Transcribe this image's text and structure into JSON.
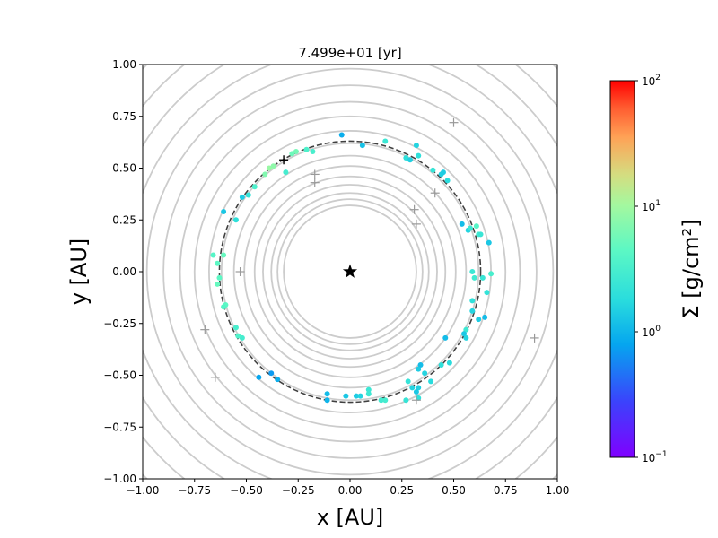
{
  "chart_data": {
    "type": "scatter",
    "title": "7.499e+01 [yr]",
    "xlabel": "x [AU]",
    "ylabel": "y [AU]",
    "xlim": [
      -1.0,
      1.0
    ],
    "ylim": [
      -1.0,
      1.0
    ],
    "x_ticks": [
      "−1.00",
      "−0.75",
      "−0.50",
      "−0.25",
      "0.00",
      "0.25",
      "0.50",
      "0.75",
      "1.00"
    ],
    "y_ticks": [
      "−1.00",
      "−0.75",
      "−0.50",
      "−0.25",
      "0.00",
      "0.25",
      "0.50",
      "0.75",
      "1.00"
    ],
    "grid": false,
    "star": {
      "x": 0.0,
      "y": 0.0,
      "marker": "star",
      "color": "#000000"
    },
    "reference_circle": {
      "radius": 0.63,
      "style": "dashed",
      "color": "#404040"
    },
    "background_rings": {
      "color": "#cccccc",
      "radii": [
        0.32,
        0.35,
        0.38,
        0.42,
        0.46,
        0.51,
        0.56,
        0.62,
        0.68,
        0.75,
        0.82,
        0.9,
        0.98,
        1.07,
        1.17,
        1.28,
        1.4
      ]
    },
    "colorbar": {
      "label": "Σ [g/cm²]",
      "scale": "log",
      "range": [
        0.1,
        100
      ],
      "tick_labels": [
        {
          "value": 0.1,
          "base": "10",
          "exp": "−1"
        },
        {
          "value": 1,
          "base": "10",
          "exp": "0"
        },
        {
          "value": 10,
          "base": "10",
          "exp": "1"
        },
        {
          "value": 100,
          "base": "10",
          "exp": "2"
        }
      ],
      "colormap": "rainbow"
    },
    "gray_markers": [
      {
        "x": 0.5,
        "y": 0.72
      },
      {
        "x": -0.17,
        "y": 0.47
      },
      {
        "x": -0.17,
        "y": 0.43
      },
      {
        "x": 0.41,
        "y": 0.38
      },
      {
        "x": 0.31,
        "y": 0.3
      },
      {
        "x": 0.32,
        "y": 0.23
      },
      {
        "x": -0.53,
        "y": 0.0
      },
      {
        "x": -0.7,
        "y": -0.28
      },
      {
        "x": -0.65,
        "y": -0.51
      },
      {
        "x": 0.89,
        "y": -0.32
      },
      {
        "x": 0.32,
        "y": -0.62
      }
    ],
    "black_marker": {
      "x": -0.32,
      "y": 0.54
    },
    "points": [
      {
        "x": -0.04,
        "y": 0.66,
        "s": 0.9
      },
      {
        "x": 0.06,
        "y": 0.61,
        "s": 1.2
      },
      {
        "x": 0.17,
        "y": 0.63,
        "s": 2.5
      },
      {
        "x": 0.32,
        "y": 0.61,
        "s": 1.6
      },
      {
        "x": 0.27,
        "y": 0.55,
        "s": 2.0
      },
      {
        "x": 0.29,
        "y": 0.54,
        "s": 1.5
      },
      {
        "x": 0.33,
        "y": 0.56,
        "s": 2.0
      },
      {
        "x": 0.4,
        "y": 0.49,
        "s": 2.3
      },
      {
        "x": 0.44,
        "y": 0.47,
        "s": 1.5
      },
      {
        "x": 0.45,
        "y": 0.48,
        "s": 1.4
      },
      {
        "x": 0.47,
        "y": 0.44,
        "s": 1.8
      },
      {
        "x": 0.54,
        "y": 0.23,
        "s": 1.1
      },
      {
        "x": 0.57,
        "y": 0.2,
        "s": 1.6
      },
      {
        "x": 0.58,
        "y": 0.21,
        "s": 2.6
      },
      {
        "x": 0.61,
        "y": 0.22,
        "s": 4.0
      },
      {
        "x": 0.62,
        "y": 0.18,
        "s": 3.0
      },
      {
        "x": 0.63,
        "y": 0.18,
        "s": 2.4
      },
      {
        "x": 0.67,
        "y": 0.14,
        "s": 1.3
      },
      {
        "x": 0.59,
        "y": 0.0,
        "s": 2.5
      },
      {
        "x": 0.6,
        "y": -0.03,
        "s": 2.8
      },
      {
        "x": 0.64,
        "y": -0.03,
        "s": 2.4
      },
      {
        "x": 0.68,
        "y": -0.01,
        "s": 3.2
      },
      {
        "x": 0.66,
        "y": -0.1,
        "s": 2.2
      },
      {
        "x": 0.59,
        "y": -0.14,
        "s": 2.0
      },
      {
        "x": 0.59,
        "y": -0.19,
        "s": 1.6
      },
      {
        "x": 0.62,
        "y": -0.23,
        "s": 1.4
      },
      {
        "x": 0.65,
        "y": -0.22,
        "s": 1.1
      },
      {
        "x": 0.56,
        "y": -0.28,
        "s": 2.6
      },
      {
        "x": 0.55,
        "y": -0.3,
        "s": 1.3
      },
      {
        "x": 0.56,
        "y": -0.32,
        "s": 1.6
      },
      {
        "x": 0.46,
        "y": -0.32,
        "s": 1.1
      },
      {
        "x": 0.44,
        "y": -0.45,
        "s": 2.0
      },
      {
        "x": 0.48,
        "y": -0.44,
        "s": 1.8
      },
      {
        "x": 0.34,
        "y": -0.45,
        "s": 1.1
      },
      {
        "x": 0.33,
        "y": -0.47,
        "s": 1.4
      },
      {
        "x": 0.36,
        "y": -0.49,
        "s": 1.6
      },
      {
        "x": 0.39,
        "y": -0.53,
        "s": 1.8
      },
      {
        "x": 0.28,
        "y": -0.53,
        "s": 2.2
      },
      {
        "x": 0.3,
        "y": -0.56,
        "s": 1.6
      },
      {
        "x": 0.33,
        "y": -0.56,
        "s": 1.5
      },
      {
        "x": 0.32,
        "y": -0.58,
        "s": 1.3
      },
      {
        "x": 0.33,
        "y": -0.61,
        "s": 2.0
      },
      {
        "x": 0.27,
        "y": -0.62,
        "s": 2.3
      },
      {
        "x": 0.09,
        "y": -0.57,
        "s": 2.5
      },
      {
        "x": 0.09,
        "y": -0.59,
        "s": 2.6
      },
      {
        "x": 0.15,
        "y": -0.62,
        "s": 2.8
      },
      {
        "x": 0.17,
        "y": -0.62,
        "s": 3.0
      },
      {
        "x": 0.03,
        "y": -0.6,
        "s": 1.4
      },
      {
        "x": 0.05,
        "y": -0.6,
        "s": 1.6
      },
      {
        "x": -0.02,
        "y": -0.6,
        "s": 1.3
      },
      {
        "x": -0.11,
        "y": -0.59,
        "s": 1.1
      },
      {
        "x": -0.11,
        "y": -0.62,
        "s": 1.0
      },
      {
        "x": -0.38,
        "y": -0.49,
        "s": 0.7
      },
      {
        "x": -0.35,
        "y": -0.52,
        "s": 0.9
      },
      {
        "x": -0.44,
        "y": -0.51,
        "s": 0.8
      },
      {
        "x": -0.52,
        "y": -0.32,
        "s": 3.0
      },
      {
        "x": -0.54,
        "y": -0.31,
        "s": 3.6
      },
      {
        "x": -0.55,
        "y": -0.27,
        "s": 3.2
      },
      {
        "x": -0.6,
        "y": -0.16,
        "s": 4.5
      },
      {
        "x": -0.61,
        "y": -0.17,
        "s": 4.0
      },
      {
        "x": -0.64,
        "y": -0.06,
        "s": 5.0
      },
      {
        "x": -0.63,
        "y": -0.03,
        "s": 4.5
      },
      {
        "x": -0.64,
        "y": 0.04,
        "s": 4.5
      },
      {
        "x": -0.61,
        "y": 0.08,
        "s": 5.0
      },
      {
        "x": -0.66,
        "y": 0.08,
        "s": 4.0
      },
      {
        "x": -0.61,
        "y": 0.29,
        "s": 1.3
      },
      {
        "x": -0.55,
        "y": 0.25,
        "s": 2.0
      },
      {
        "x": -0.52,
        "y": 0.36,
        "s": 1.4
      },
      {
        "x": -0.49,
        "y": 0.37,
        "s": 2.2
      },
      {
        "x": -0.46,
        "y": 0.41,
        "s": 3.4
      },
      {
        "x": -0.41,
        "y": 0.47,
        "s": 7.0
      },
      {
        "x": -0.39,
        "y": 0.5,
        "s": 9.0
      },
      {
        "x": -0.37,
        "y": 0.51,
        "s": 8.0
      },
      {
        "x": -0.31,
        "y": 0.48,
        "s": 3.0
      },
      {
        "x": -0.28,
        "y": 0.57,
        "s": 5.5
      },
      {
        "x": -0.26,
        "y": 0.58,
        "s": 6.0
      },
      {
        "x": -0.21,
        "y": 0.59,
        "s": 3.5
      },
      {
        "x": -0.18,
        "y": 0.58,
        "s": 3.2
      }
    ]
  }
}
